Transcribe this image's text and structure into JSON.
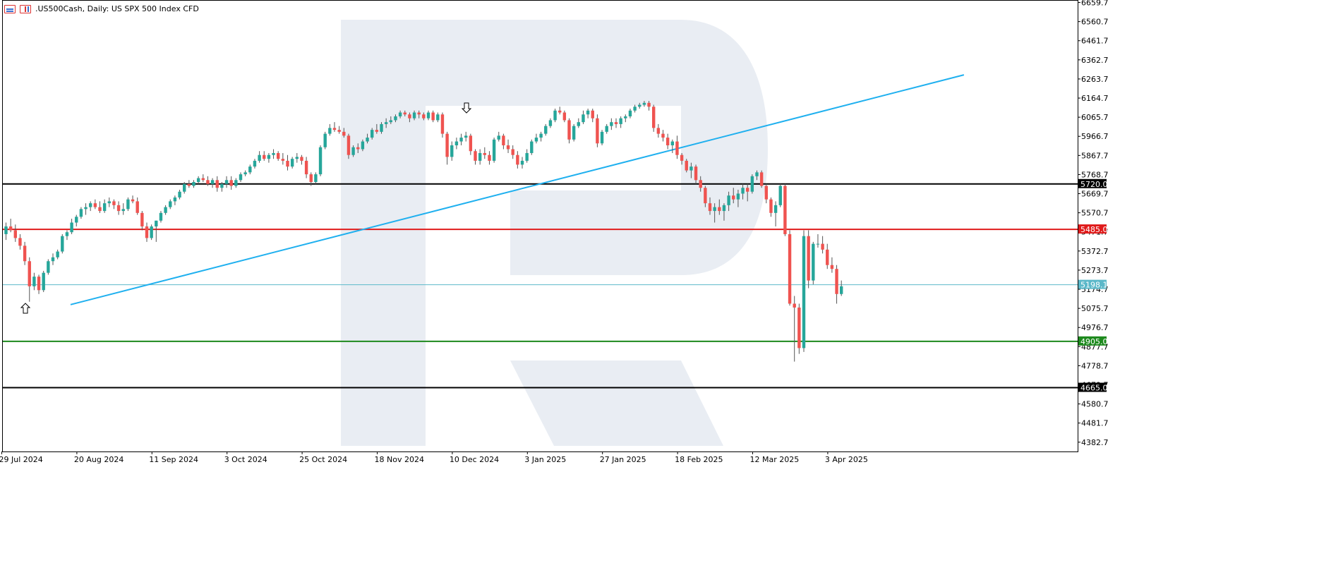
{
  "header": {
    "symbol": ".US500Cash",
    "timeframe": "Daily",
    "description": "US SPX 500 Index CFD",
    "title_text": ".US500Cash, Daily:  US SPX 500 Index CFD",
    "icons": [
      "table-icon",
      "chart-icon"
    ]
  },
  "chart_data": {
    "type": "candlestick",
    "ylim": [
      4334.5,
      6669.0
    ],
    "y_ticks": [
      6659.7,
      6560.7,
      6461.7,
      6362.7,
      6263.7,
      6164.7,
      6065.7,
      5966.7,
      5867.7,
      5768.7,
      5669.7,
      5570.7,
      5471.7,
      5372.7,
      5273.7,
      5174.7,
      5075.7,
      4976.7,
      4877.7,
      4778.7,
      4679.7,
      4580.7,
      4481.7,
      4382.7
    ],
    "x_labels": [
      "29 Jul 2024",
      "20 Aug 2024",
      "11 Sep 2024",
      "3 Oct 2024",
      "25 Oct 2024",
      "18 Nov 2024",
      "10 Dec 2024",
      "3 Jan 2025",
      "27 Jan 2025",
      "18 Feb 2025",
      "12 Mar 2025",
      "3 Apr 2025"
    ],
    "x_label_index": [
      0,
      16,
      32,
      48,
      64,
      80,
      96,
      112,
      128,
      144,
      160,
      176
    ],
    "bull_color": "#26a69a",
    "bear_color": "#ef5350",
    "candles": [
      [
        5460,
        5520,
        5430,
        5500
      ],
      [
        5500,
        5540,
        5470,
        5480
      ],
      [
        5480,
        5510,
        5420,
        5440
      ],
      [
        5440,
        5460,
        5380,
        5400
      ],
      [
        5400,
        5420,
        5300,
        5320
      ],
      [
        5320,
        5340,
        5110,
        5190
      ],
      [
        5190,
        5260,
        5170,
        5240
      ],
      [
        5240,
        5250,
        5150,
        5170
      ],
      [
        5170,
        5270,
        5160,
        5260
      ],
      [
        5260,
        5330,
        5250,
        5320
      ],
      [
        5320,
        5360,
        5300,
        5340
      ],
      [
        5340,
        5380,
        5330,
        5370
      ],
      [
        5370,
        5460,
        5360,
        5450
      ],
      [
        5450,
        5480,
        5430,
        5470
      ],
      [
        5470,
        5540,
        5460,
        5520
      ],
      [
        5520,
        5560,
        5500,
        5550
      ],
      [
        5550,
        5600,
        5540,
        5590
      ],
      [
        5590,
        5620,
        5560,
        5600
      ],
      [
        5600,
        5630,
        5580,
        5620
      ],
      [
        5620,
        5640,
        5590,
        5600
      ],
      [
        5600,
        5630,
        5570,
        5580
      ],
      [
        5580,
        5640,
        5570,
        5620
      ],
      [
        5620,
        5650,
        5600,
        5630
      ],
      [
        5630,
        5640,
        5590,
        5610
      ],
      [
        5610,
        5630,
        5560,
        5580
      ],
      [
        5580,
        5620,
        5560,
        5590
      ],
      [
        5590,
        5650,
        5580,
        5640
      ],
      [
        5640,
        5660,
        5620,
        5630
      ],
      [
        5630,
        5650,
        5560,
        5570
      ],
      [
        5570,
        5580,
        5480,
        5500
      ],
      [
        5500,
        5520,
        5420,
        5440
      ],
      [
        5440,
        5510,
        5430,
        5500
      ],
      [
        5500,
        5530,
        5420,
        5530
      ],
      [
        5530,
        5580,
        5520,
        5570
      ],
      [
        5570,
        5610,
        5560,
        5600
      ],
      [
        5600,
        5640,
        5590,
        5630
      ],
      [
        5630,
        5660,
        5610,
        5650
      ],
      [
        5650,
        5690,
        5640,
        5680
      ],
      [
        5680,
        5730,
        5670,
        5720
      ],
      [
        5720,
        5740,
        5700,
        5710
      ],
      [
        5710,
        5740,
        5700,
        5730
      ],
      [
        5730,
        5760,
        5720,
        5750
      ],
      [
        5750,
        5770,
        5730,
        5740
      ],
      [
        5740,
        5760,
        5710,
        5720
      ],
      [
        5720,
        5750,
        5700,
        5740
      ],
      [
        5740,
        5760,
        5680,
        5700
      ],
      [
        5700,
        5730,
        5680,
        5720
      ],
      [
        5720,
        5760,
        5700,
        5740
      ],
      [
        5740,
        5760,
        5690,
        5710
      ],
      [
        5710,
        5750,
        5700,
        5740
      ],
      [
        5740,
        5780,
        5730,
        5770
      ],
      [
        5770,
        5790,
        5760,
        5780
      ],
      [
        5780,
        5820,
        5770,
        5810
      ],
      [
        5810,
        5850,
        5800,
        5840
      ],
      [
        5840,
        5890,
        5830,
        5870
      ],
      [
        5870,
        5890,
        5840,
        5850
      ],
      [
        5850,
        5880,
        5830,
        5870
      ],
      [
        5870,
        5900,
        5850,
        5880
      ],
      [
        5880,
        5890,
        5840,
        5850
      ],
      [
        5850,
        5880,
        5820,
        5840
      ],
      [
        5840,
        5870,
        5790,
        5810
      ],
      [
        5810,
        5860,
        5800,
        5850
      ],
      [
        5850,
        5880,
        5830,
        5860
      ],
      [
        5860,
        5870,
        5820,
        5840
      ],
      [
        5840,
        5860,
        5750,
        5770
      ],
      [
        5770,
        5780,
        5710,
        5730
      ],
      [
        5730,
        5780,
        5720,
        5770
      ],
      [
        5770,
        5920,
        5760,
        5910
      ],
      [
        5910,
        5990,
        5900,
        5980
      ],
      [
        5980,
        6030,
        5970,
        6010
      ],
      [
        6010,
        6040,
        5990,
        6000
      ],
      [
        6000,
        6020,
        5980,
        5990
      ],
      [
        5990,
        6010,
        5960,
        5970
      ],
      [
        5970,
        5980,
        5850,
        5870
      ],
      [
        5870,
        5920,
        5860,
        5910
      ],
      [
        5910,
        5930,
        5880,
        5900
      ],
      [
        5900,
        5950,
        5890,
        5940
      ],
      [
        5940,
        5980,
        5930,
        5960
      ],
      [
        5960,
        6010,
        5950,
        6000
      ],
      [
        6000,
        6030,
        5980,
        5990
      ],
      [
        5990,
        6040,
        5980,
        6030
      ],
      [
        6030,
        6060,
        6010,
        6040
      ],
      [
        6040,
        6070,
        6030,
        6050
      ],
      [
        6050,
        6080,
        6040,
        6070
      ],
      [
        6070,
        6100,
        6060,
        6090
      ],
      [
        6090,
        6100,
        6070,
        6080
      ],
      [
        6080,
        6090,
        6040,
        6060
      ],
      [
        6060,
        6100,
        6050,
        6090
      ],
      [
        6090,
        6100,
        6060,
        6080
      ],
      [
        6080,
        6090,
        6050,
        6060
      ],
      [
        6060,
        6100,
        6050,
        6090
      ],
      [
        6090,
        6100,
        6040,
        6050
      ],
      [
        6050,
        6090,
        6040,
        6080
      ],
      [
        6080,
        6090,
        5960,
        5980
      ],
      [
        5980,
        5990,
        5820,
        5860
      ],
      [
        5860,
        5940,
        5840,
        5920
      ],
      [
        5920,
        5960,
        5900,
        5940
      ],
      [
        5940,
        5980,
        5920,
        5960
      ],
      [
        5960,
        5990,
        5940,
        5970
      ],
      [
        5970,
        5980,
        5870,
        5890
      ],
      [
        5890,
        5900,
        5820,
        5840
      ],
      [
        5840,
        5900,
        5820,
        5880
      ],
      [
        5880,
        5910,
        5850,
        5870
      ],
      [
        5870,
        5890,
        5820,
        5840
      ],
      [
        5840,
        5960,
        5830,
        5950
      ],
      [
        5950,
        5990,
        5940,
        5970
      ],
      [
        5970,
        5980,
        5900,
        5920
      ],
      [
        5920,
        5950,
        5880,
        5900
      ],
      [
        5900,
        5920,
        5850,
        5870
      ],
      [
        5870,
        5890,
        5800,
        5820
      ],
      [
        5820,
        5860,
        5800,
        5840
      ],
      [
        5840,
        5900,
        5830,
        5880
      ],
      [
        5880,
        5950,
        5870,
        5940
      ],
      [
        5940,
        5980,
        5930,
        5960
      ],
      [
        5960,
        5990,
        5940,
        5980
      ],
      [
        5980,
        6030,
        5970,
        6020
      ],
      [
        6020,
        6060,
        6010,
        6050
      ],
      [
        6050,
        6110,
        6040,
        6100
      ],
      [
        6100,
        6120,
        6080,
        6090
      ],
      [
        6090,
        6100,
        6040,
        6050
      ],
      [
        6050,
        6060,
        5930,
        5950
      ],
      [
        5950,
        6030,
        5940,
        6020
      ],
      [
        6020,
        6060,
        6010,
        6040
      ],
      [
        6040,
        6100,
        6030,
        6080
      ],
      [
        6080,
        6110,
        6060,
        6100
      ],
      [
        6100,
        6110,
        6040,
        6060
      ],
      [
        6060,
        6080,
        5910,
        5930
      ],
      [
        5930,
        6000,
        5920,
        5990
      ],
      [
        5990,
        6030,
        5980,
        6020
      ],
      [
        6020,
        6060,
        6000,
        6040
      ],
      [
        6040,
        6060,
        6010,
        6030
      ],
      [
        6030,
        6070,
        6010,
        6060
      ],
      [
        6060,
        6080,
        6040,
        6070
      ],
      [
        6070,
        6110,
        6060,
        6100
      ],
      [
        6100,
        6130,
        6090,
        6120
      ],
      [
        6120,
        6140,
        6110,
        6130
      ],
      [
        6130,
        6150,
        6120,
        6140
      ],
      [
        6140,
        6150,
        6100,
        6120
      ],
      [
        6120,
        6130,
        5990,
        6010
      ],
      [
        6010,
        6030,
        5960,
        5980
      ],
      [
        5980,
        6000,
        5940,
        5960
      ],
      [
        5960,
        5980,
        5900,
        5920
      ],
      [
        5920,
        5950,
        5880,
        5940
      ],
      [
        5940,
        5970,
        5850,
        5870
      ],
      [
        5870,
        5880,
        5820,
        5840
      ],
      [
        5840,
        5850,
        5780,
        5790
      ],
      [
        5790,
        5830,
        5750,
        5810
      ],
      [
        5810,
        5820,
        5720,
        5740
      ],
      [
        5740,
        5760,
        5680,
        5700
      ],
      [
        5700,
        5710,
        5600,
        5620
      ],
      [
        5620,
        5650,
        5560,
        5580
      ],
      [
        5580,
        5620,
        5520,
        5600
      ],
      [
        5600,
        5640,
        5560,
        5580
      ],
      [
        5580,
        5620,
        5530,
        5610
      ],
      [
        5610,
        5680,
        5580,
        5660
      ],
      [
        5660,
        5700,
        5620,
        5640
      ],
      [
        5640,
        5690,
        5600,
        5670
      ],
      [
        5670,
        5720,
        5640,
        5700
      ],
      [
        5700,
        5720,
        5630,
        5680
      ],
      [
        5680,
        5770,
        5670,
        5760
      ],
      [
        5760,
        5790,
        5740,
        5780
      ],
      [
        5780,
        5790,
        5700,
        5710
      ],
      [
        5710,
        5720,
        5620,
        5640
      ],
      [
        5640,
        5650,
        5550,
        5570
      ],
      [
        5570,
        5630,
        5500,
        5610
      ],
      [
        5610,
        5720,
        5600,
        5710
      ],
      [
        5710,
        5720,
        5450,
        5460
      ],
      [
        5460,
        5480,
        5090,
        5100
      ],
      [
        5100,
        5140,
        4800,
        5080
      ],
      [
        5080,
        5100,
        4840,
        4870
      ],
      [
        4870,
        5480,
        4850,
        5450
      ],
      [
        5450,
        5480,
        5180,
        5220
      ],
      [
        5220,
        5420,
        5200,
        5410
      ],
      [
        5410,
        5460,
        5390,
        5410
      ],
      [
        5410,
        5450,
        5360,
        5380
      ],
      [
        5380,
        5410,
        5280,
        5300
      ],
      [
        5300,
        5340,
        5260,
        5280
      ],
      [
        5280,
        5300,
        5100,
        5150
      ],
      [
        5150,
        5220,
        5140,
        5190
      ]
    ],
    "trendline": {
      "start": [
        10,
        5095
      ],
      "end": [
        231,
        6285
      ]
    },
    "arrows": [
      {
        "direction": "up",
        "index": 10,
        "price": 5030
      },
      {
        "direction": "down",
        "index": 180,
        "price": 6105
      }
    ],
    "horizontal_lines": [
      {
        "name": "upper-resistance",
        "price": 5720.0,
        "label": "5720.0",
        "color": "#000000"
      },
      {
        "name": "red-level",
        "price": 5485.0,
        "label": "5485.0",
        "color": "#e01b1b"
      },
      {
        "name": "current-price",
        "price": 5198.1,
        "label": "5198.1",
        "color": "#5bb8c9"
      },
      {
        "name": "green-level",
        "price": 4905.0,
        "label": "4905.0",
        "color": "#1e8a1e"
      },
      {
        "name": "lower-support",
        "price": 4665.0,
        "label": "4665.0",
        "color": "#000000"
      }
    ]
  }
}
